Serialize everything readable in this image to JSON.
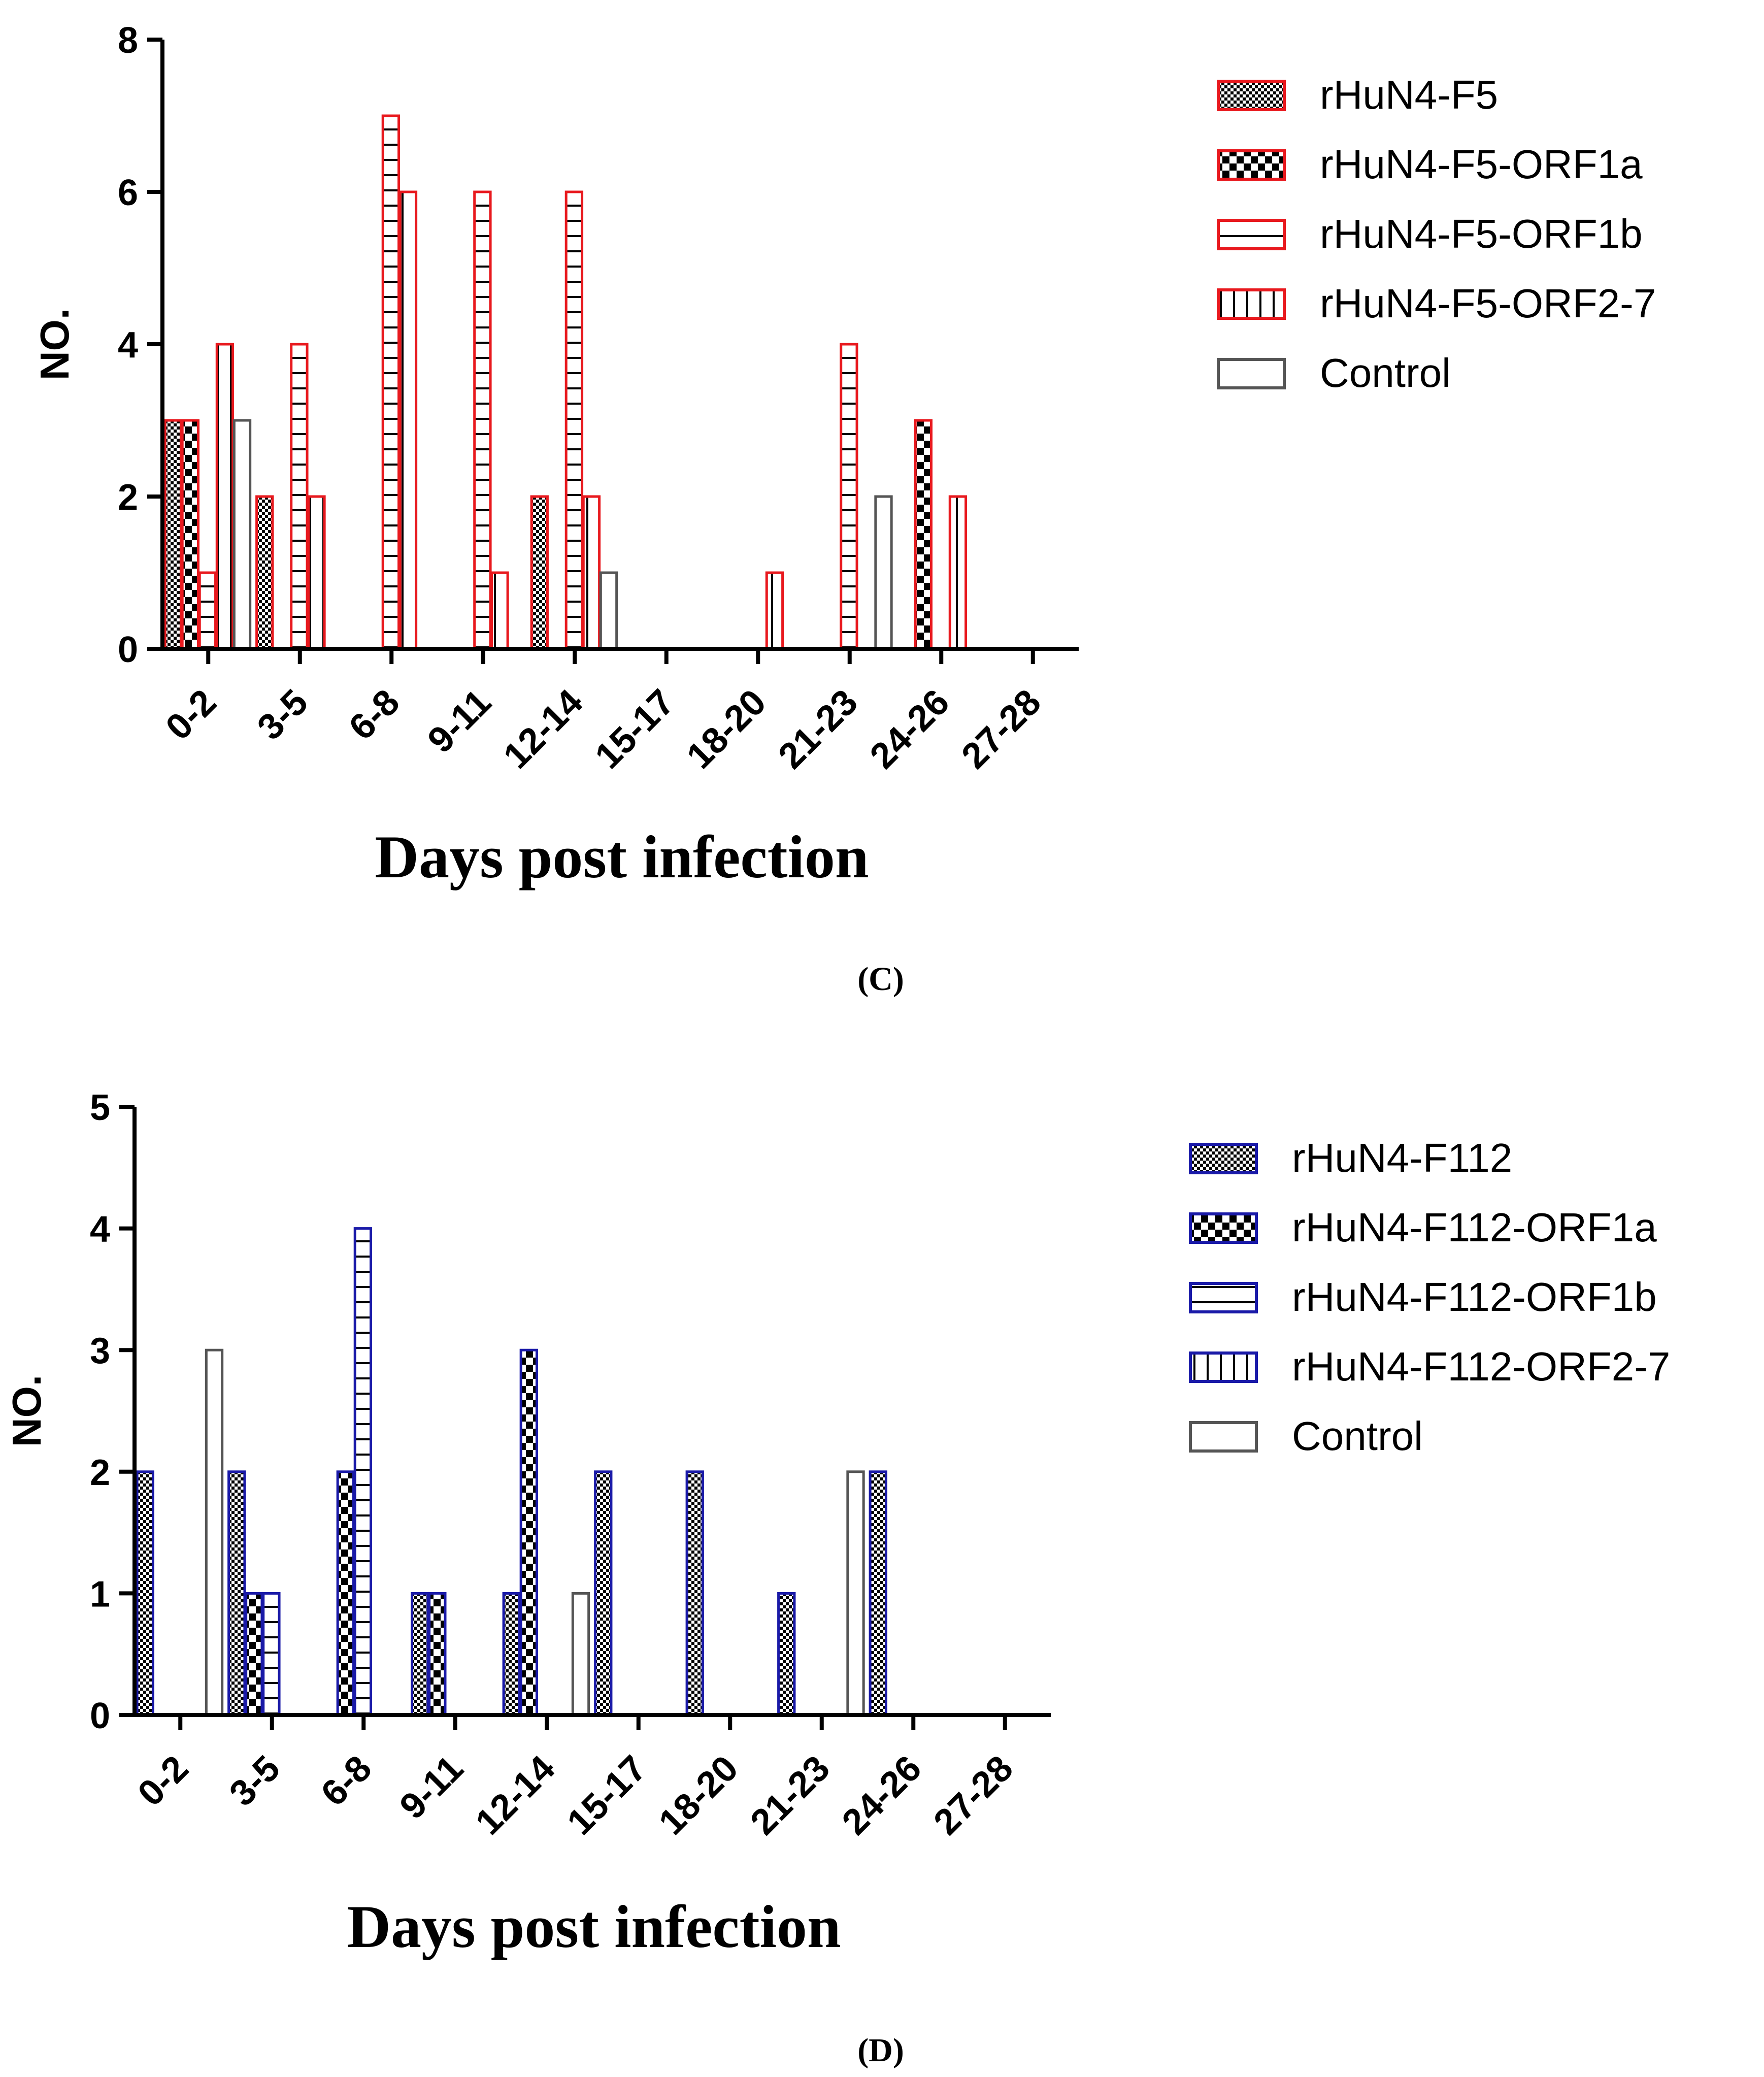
{
  "categories": [
    "0-2",
    "3-5",
    "6-8",
    "9-11",
    "12-14",
    "15-17",
    "18-20",
    "21-23",
    "24-26",
    "27-28"
  ],
  "chart_data": [
    {
      "type": "bar",
      "panel": "C",
      "panel_label": "(C)",
      "xlabel": "Days post infection",
      "ylabel": "NO.",
      "ylim": [
        0,
        8
      ],
      "yticks": [
        0,
        2,
        4,
        6,
        8
      ],
      "accent": "#e8191e",
      "legend_position": "top-right",
      "categories": [
        "0-2",
        "3-5",
        "6-8",
        "9-11",
        "12-14",
        "15-17",
        "18-20",
        "21-23",
        "24-26",
        "27-28"
      ],
      "series": [
        {
          "name": "rHuN4-F5",
          "pattern": "checker-fine",
          "values": [
            3,
            2,
            0,
            0,
            2,
            0,
            0,
            0,
            0,
            0
          ]
        },
        {
          "name": "rHuN4-F5-ORF1a",
          "pattern": "checker-coarse",
          "values": [
            3,
            0,
            0,
            0,
            0,
            0,
            0,
            0,
            3,
            0
          ]
        },
        {
          "name": "rHuN4-F5-ORF1b",
          "pattern": "horizontal",
          "values": [
            1,
            4,
            7,
            6,
            6,
            0,
            0,
            4,
            0,
            0
          ]
        },
        {
          "name": "rHuN4-F5-ORF2-7",
          "pattern": "vertical",
          "values": [
            4,
            2,
            6,
            1,
            2,
            0,
            1,
            0,
            2,
            0
          ]
        },
        {
          "name": "Control",
          "pattern": "none",
          "values": [
            3,
            0,
            0,
            0,
            1,
            0,
            0,
            2,
            0,
            0
          ]
        }
      ]
    },
    {
      "type": "bar",
      "panel": "D",
      "panel_label": "(D)",
      "xlabel": "Days post infection",
      "ylabel": "NO.",
      "ylim": [
        0,
        5
      ],
      "yticks": [
        0,
        1,
        2,
        3,
        4,
        5
      ],
      "accent": "#1a1aa8",
      "legend_position": "top-right",
      "categories": [
        "0-2",
        "3-5",
        "6-8",
        "9-11",
        "12-14",
        "15-17",
        "18-20",
        "21-23",
        "24-26",
        "27-28"
      ],
      "series": [
        {
          "name": "rHuN4-F112",
          "pattern": "checker-fine",
          "values": [
            2,
            2,
            0,
            1,
            1,
            2,
            2,
            1,
            2,
            0
          ]
        },
        {
          "name": "rHuN4-F112-ORF1a",
          "pattern": "checker-coarse",
          "values": [
            0,
            1,
            2,
            1,
            3,
            0,
            0,
            0,
            0,
            0
          ]
        },
        {
          "name": "rHuN4-F112-ORF1b",
          "pattern": "horizontal",
          "values": [
            0,
            1,
            4,
            0,
            0,
            0,
            0,
            0,
            0,
            0
          ]
        },
        {
          "name": "rHuN4-F112-ORF2-7",
          "pattern": "vertical",
          "values": [
            0,
            0,
            0,
            0,
            0,
            0,
            0,
            0,
            0,
            0
          ]
        },
        {
          "name": "Control",
          "pattern": "none",
          "values": [
            3,
            0,
            0,
            0,
            1,
            0,
            0,
            2,
            0,
            0
          ]
        }
      ]
    }
  ]
}
